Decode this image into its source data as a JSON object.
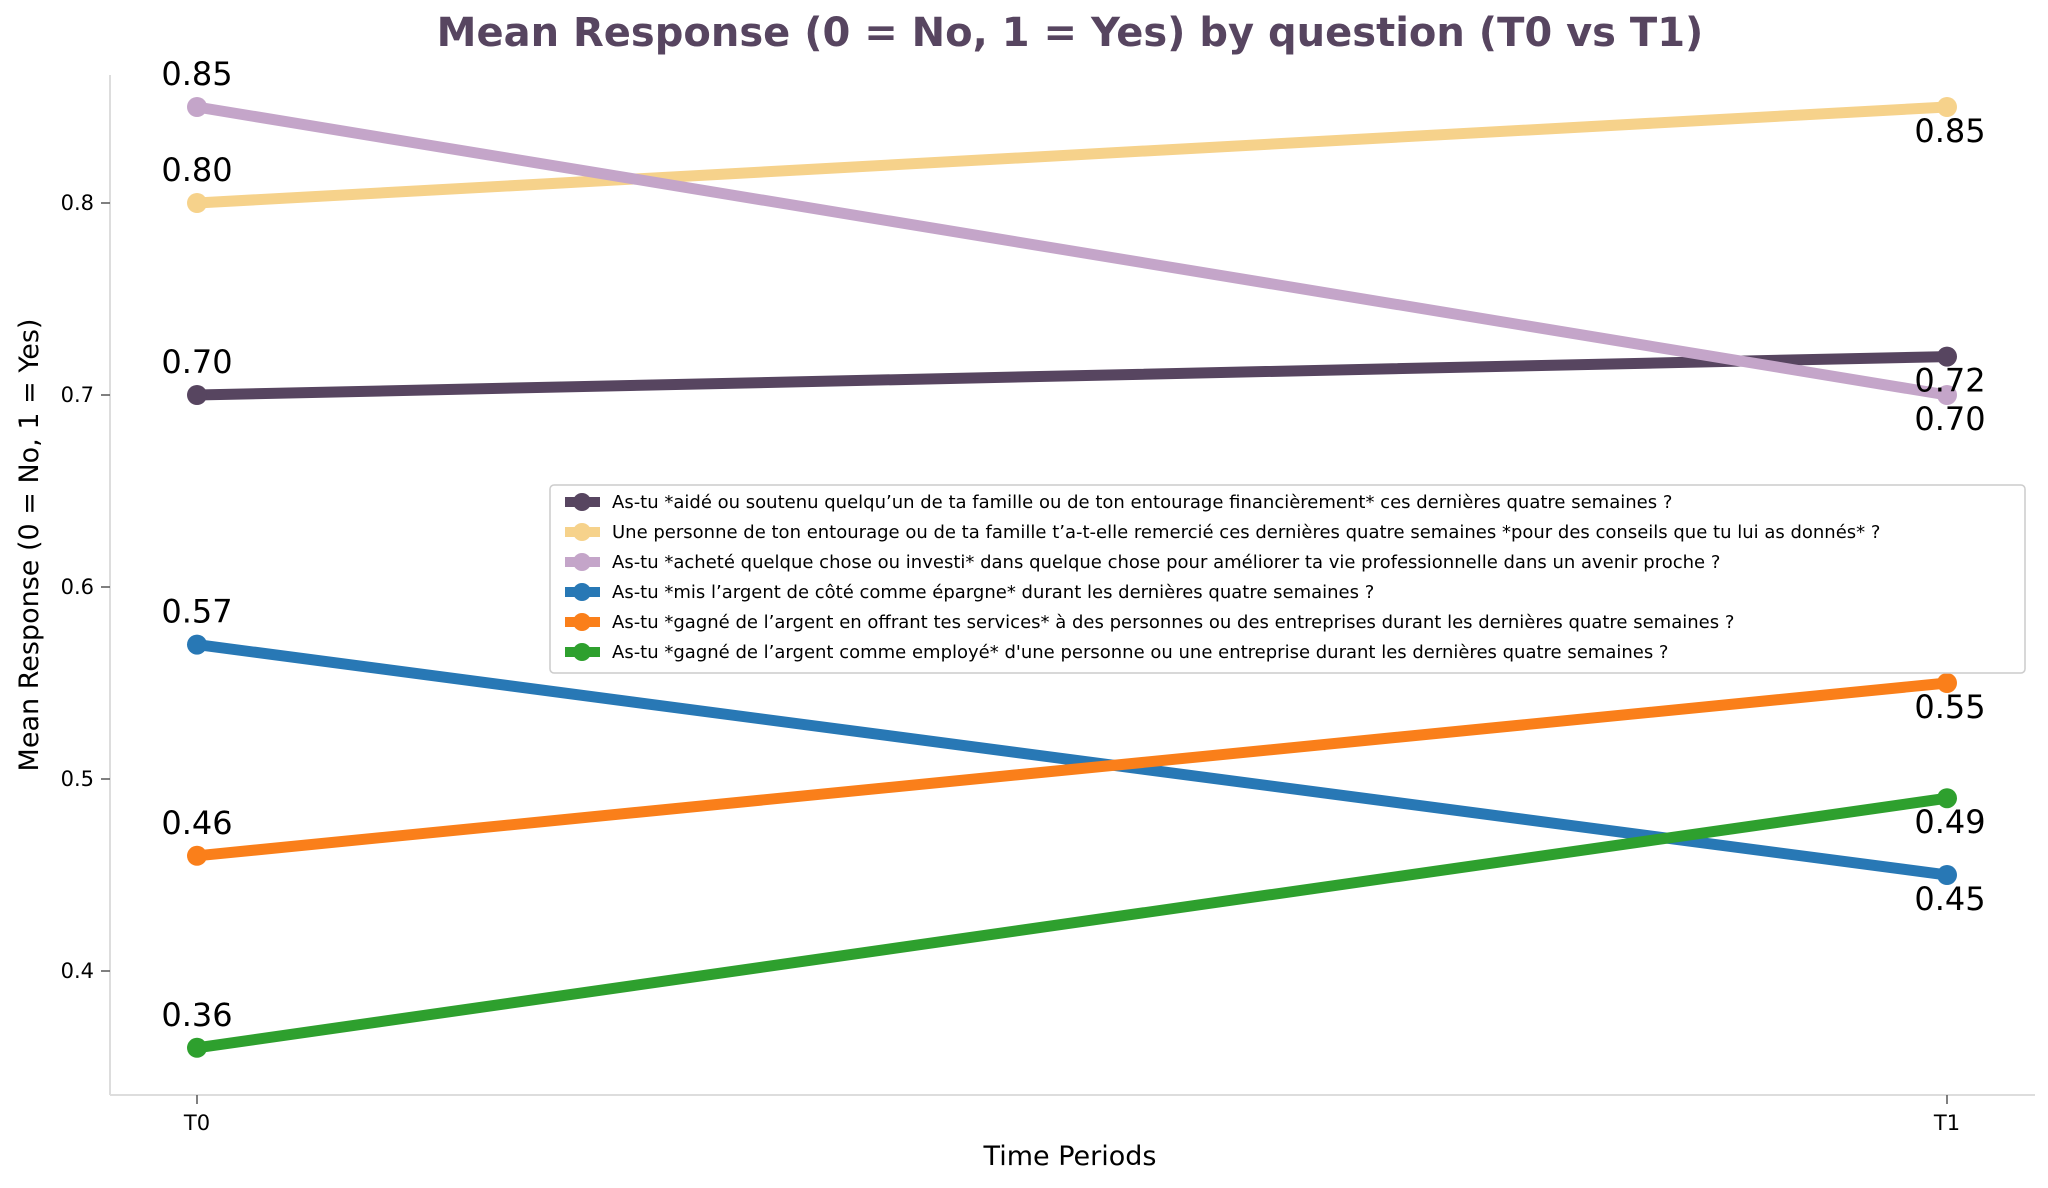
{
  "chart_data": {
    "type": "line",
    "title": "Mean Response (0 = No, 1 = Yes) by question (T0 vs T1)",
    "xlabel": "Time Periods",
    "ylabel": "Mean Response (0 = No, 1 = Yes)",
    "categories": [
      "T0",
      "T1"
    ],
    "yticks": [
      "0.4",
      "0.5",
      "0.6",
      "0.7",
      "0.8"
    ],
    "ylim": [
      0.33,
      0.87
    ],
    "grid": false,
    "legend_position": "center-right",
    "title_color": "#574560",
    "series": [
      {
        "name": "As-tu *aidé ou soutenu quelqu’un de ta famille ou de ton entourage financièrement* ces dernières quatre semaines ?",
        "values": [
          0.7,
          0.72
        ],
        "labels": [
          "0.70",
          "0.72"
        ],
        "color": "#574560"
      },
      {
        "name": "Une personne de ton entourage ou de ta famille t’a-t-elle remercié ces dernières quatre semaines *pour des conseils que tu lui as donnés* ?",
        "values": [
          0.8,
          0.85
        ],
        "labels": [
          "0.80",
          "0.85"
        ],
        "color": "#f6d28b"
      },
      {
        "name": "As-tu *acheté quelque chose ou investi* dans quelque chose pour améliorer ta vie professionnelle dans un avenir proche ?",
        "values": [
          0.85,
          0.7
        ],
        "labels": [
          "0.85",
          "0.70"
        ],
        "color": "#c4a5c9"
      },
      {
        "name": "As-tu *mis l’argent de côté comme épargne* durant les dernières quatre semaines ?",
        "values": [
          0.57,
          0.45
        ],
        "labels": [
          "0.57",
          "0.45"
        ],
        "color": "#2878b5"
      },
      {
        "name": "As-tu *gagné de l’argent en offrant tes services* à des personnes ou des entreprises durant les dernières quatre semaines ?",
        "values": [
          0.46,
          0.55
        ],
        "labels": [
          "0.46",
          "0.55"
        ],
        "color": "#fa7f1a"
      },
      {
        "name": "As-tu *gagné de l’argent comme employé* d'une personne ou une entreprise durant les dernières quatre semaines ?",
        "values": [
          0.36,
          0.49
        ],
        "labels": [
          "0.36",
          "0.49"
        ],
        "color": "#2ea02e"
      }
    ]
  }
}
